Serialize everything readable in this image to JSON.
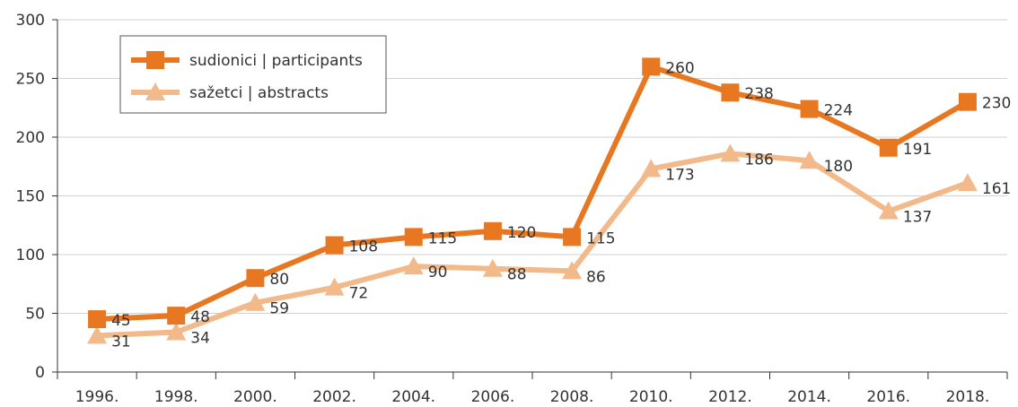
{
  "chart_data": {
    "type": "line",
    "categories": [
      "1996.",
      "1998.",
      "2000.",
      "2002.",
      "2004.",
      "2006.",
      "2008.",
      "2010.",
      "2012.",
      "2014.",
      "2016.",
      "2018."
    ],
    "series": [
      {
        "name": "sudionici | participants",
        "values": [
          45,
          48,
          80,
          108,
          115,
          120,
          115,
          260,
          238,
          224,
          191,
          230
        ],
        "labels": [
          "45",
          "48",
          "80",
          "108",
          "115",
          "120",
          "115",
          "260",
          "238",
          "224",
          "191",
          "230"
        ],
        "color": "#E87722",
        "marker": "square"
      },
      {
        "name": "sažetci | abstracts",
        "values": [
          31,
          34,
          59,
          72,
          90,
          88,
          86,
          173,
          186,
          180,
          137,
          161
        ],
        "labels": [
          "31",
          "34",
          "59",
          "72",
          "90",
          "88",
          "86",
          "173",
          "186",
          "180",
          "137",
          "161"
        ],
        "color": "#F2B98A",
        "marker": "triangle"
      }
    ],
    "ylim": [
      0,
      300
    ],
    "yticks": [
      "0",
      "50",
      "100",
      "150",
      "200",
      "250",
      "300"
    ],
    "grid": true,
    "legend_position": "top-left"
  }
}
